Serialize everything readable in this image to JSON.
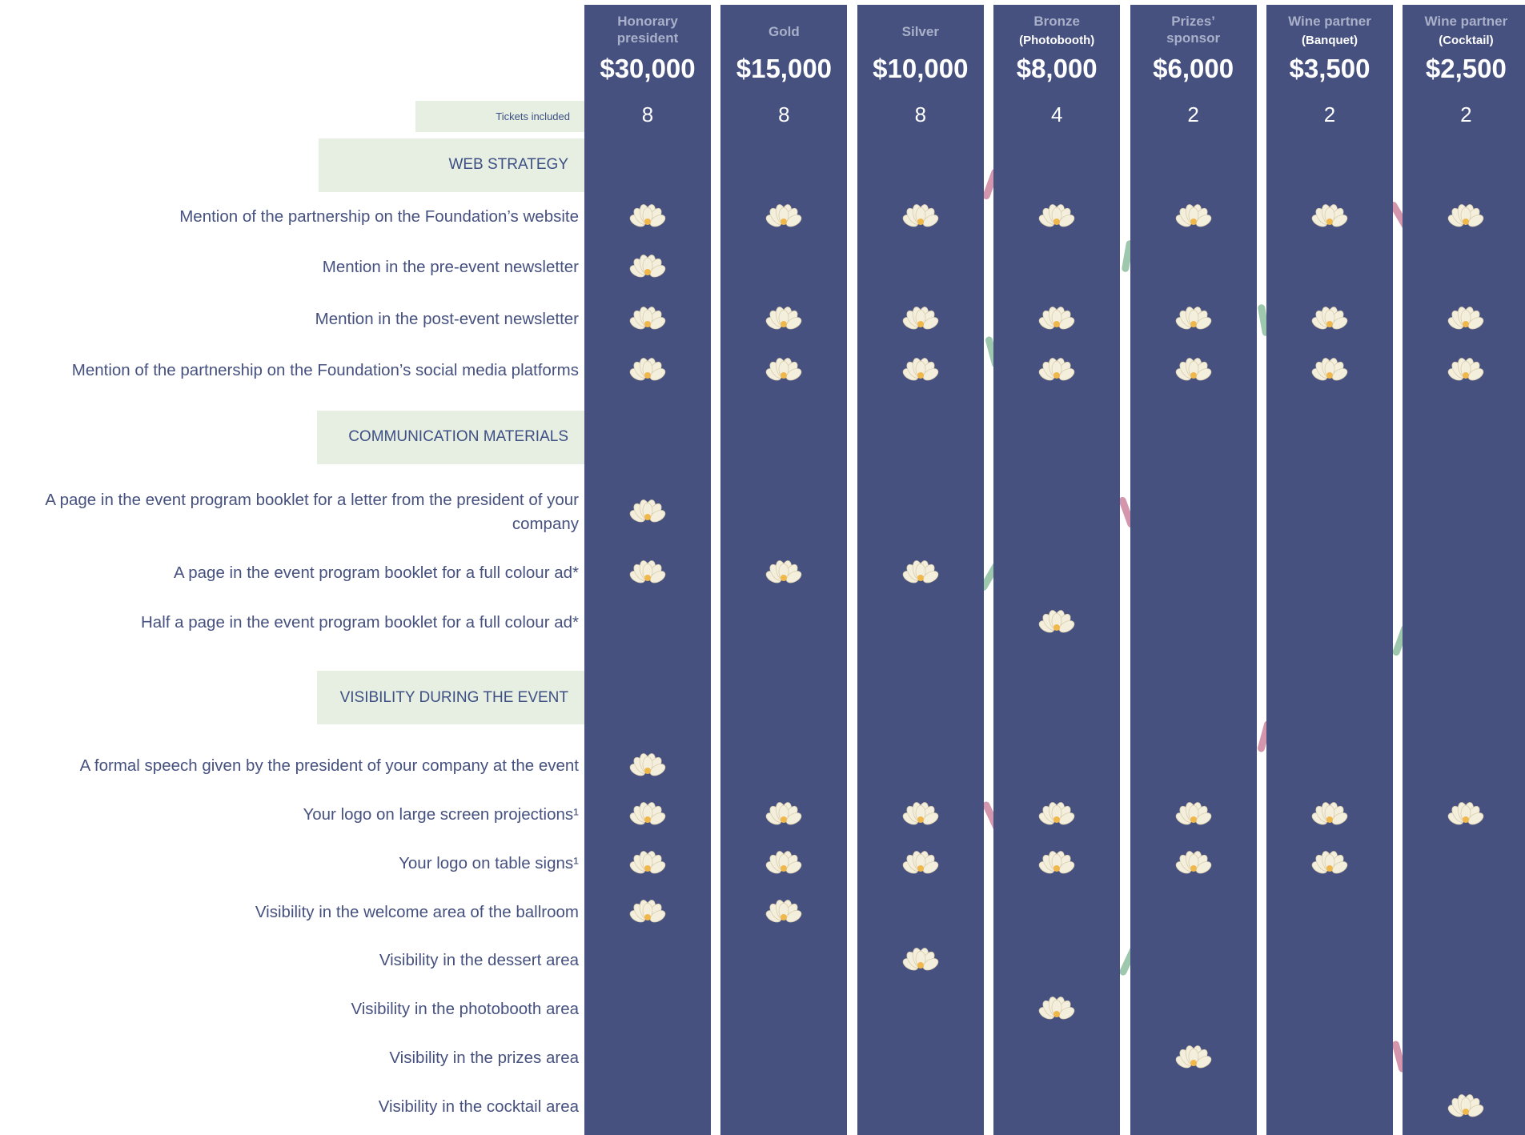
{
  "tickets_label": "Tickets included",
  "tiers": [
    {
      "name": "Honorary president",
      "price": "$30,000",
      "tickets": 8
    },
    {
      "name": "Gold",
      "price": "$15,000",
      "tickets": 8
    },
    {
      "name": "Silver",
      "price": "$10,000",
      "tickets": 8
    },
    {
      "name": "Bronze",
      "sub": "(Photobooth)",
      "price": "$8,000",
      "tickets": 4
    },
    {
      "name": "Prizes’ sponsor",
      "price": "$6,000",
      "tickets": 2
    },
    {
      "name": "Wine partner",
      "sub": "(Banquet)",
      "price": "$3,500",
      "tickets": 2
    },
    {
      "name": "Wine partner",
      "sub": "(Cocktail)",
      "price": "$2,500",
      "tickets": 2
    }
  ],
  "sections": [
    {
      "title": "WEB STRATEGY",
      "rows": [
        {
          "label": "Mention of the partnership on the Foundation’s website",
          "included": [
            true,
            true,
            true,
            true,
            true,
            true,
            true
          ]
        },
        {
          "label": "Mention in the pre-event newsletter",
          "included": [
            true,
            false,
            false,
            false,
            false,
            false,
            false
          ]
        },
        {
          "label": "Mention in the post-event newsletter",
          "included": [
            true,
            true,
            true,
            true,
            true,
            true,
            true
          ]
        },
        {
          "label": "Mention of the partnership on the Foundation’s social media platforms",
          "included": [
            true,
            true,
            true,
            true,
            true,
            true,
            true
          ]
        }
      ]
    },
    {
      "title": "COMMUNICATION MATERIALS",
      "rows": [
        {
          "label": "A page in the event program booklet for a letter from the president of your company",
          "included": [
            true,
            false,
            false,
            false,
            false,
            false,
            false
          ]
        },
        {
          "label": "A page in the event program booklet for a full colour ad*",
          "included": [
            true,
            true,
            true,
            false,
            false,
            false,
            false
          ]
        },
        {
          "label": "Half a page in the event program booklet for a full colour ad*",
          "included": [
            false,
            false,
            false,
            true,
            false,
            false,
            false
          ]
        }
      ]
    },
    {
      "title": "VISIBILITY DURING THE EVENT",
      "rows": [
        {
          "label": "A formal speech given by the president of your company at the event",
          "included": [
            true,
            false,
            false,
            false,
            false,
            false,
            false
          ]
        },
        {
          "label": "Your logo on large screen projections¹",
          "included": [
            true,
            true,
            true,
            true,
            true,
            true,
            true
          ]
        },
        {
          "label": "Your logo on table signs¹",
          "included": [
            true,
            true,
            true,
            true,
            true,
            true,
            false
          ]
        },
        {
          "label": "Visibility in the welcome area of the ballroom",
          "included": [
            true,
            true,
            false,
            false,
            false,
            false,
            false
          ]
        },
        {
          "label": "Visibility in the dessert area",
          "included": [
            false,
            false,
            true,
            false,
            false,
            false,
            false
          ]
        },
        {
          "label": "Visibility in the photobooth area",
          "included": [
            false,
            false,
            false,
            true,
            false,
            false,
            false
          ]
        },
        {
          "label": "Visibility in the prizes area",
          "included": [
            false,
            false,
            false,
            false,
            true,
            false,
            false
          ]
        },
        {
          "label": "Visibility in the cocktail area",
          "included": [
            false,
            false,
            false,
            false,
            false,
            false,
            true
          ]
        }
      ]
    }
  ]
}
